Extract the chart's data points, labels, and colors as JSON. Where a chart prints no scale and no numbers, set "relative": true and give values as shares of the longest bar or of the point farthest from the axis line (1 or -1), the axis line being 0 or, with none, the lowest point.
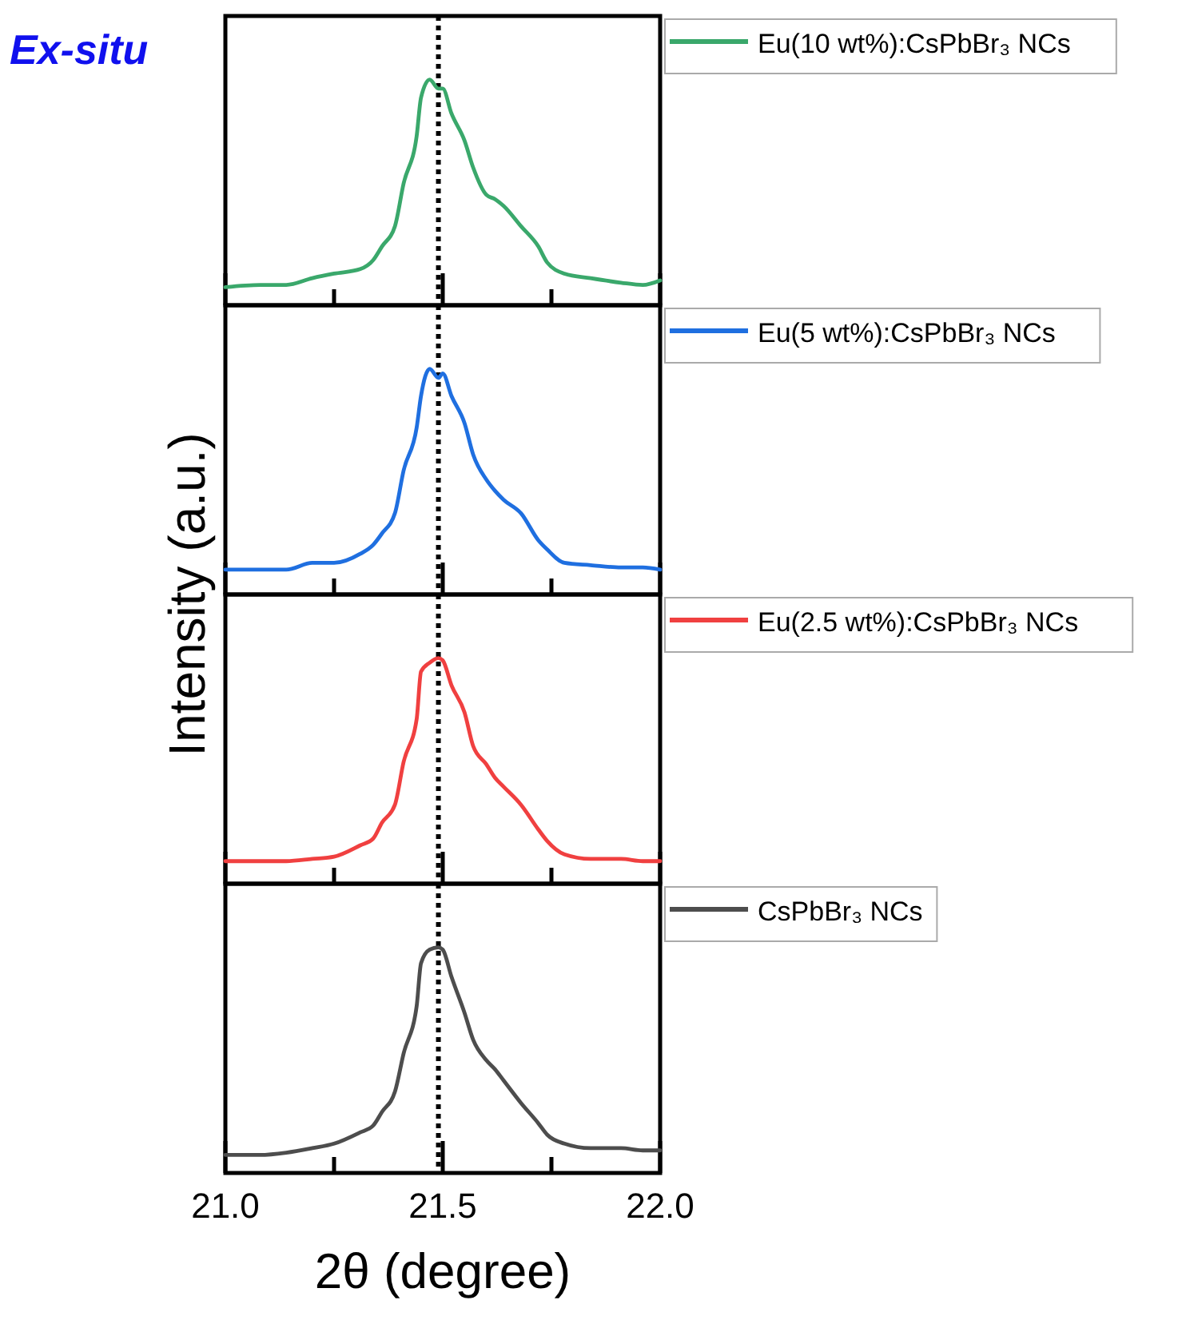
{
  "chart_data": [
    {
      "type": "line",
      "title": "Ex-situ",
      "ylabel": "Intensity (a.u.)",
      "relative": true,
      "legend": "right",
      "tick_labels": false,
      "xlim": [
        21,
        22
      ],
      "xticks": [
        {
          "value": 21,
          "label": null
        },
        {
          "value": 21.25,
          "label": null
        },
        {
          "value": 21.5,
          "label": null
        },
        {
          "value": 21.75,
          "label": null
        },
        {
          "value": 22,
          "label": null
        }
      ],
      "ref_lines": [
        {
          "axis": "x",
          "value": 21.49,
          "label": null,
          "color": "#000000",
          "line_style": "dotted"
        }
      ],
      "x": [
        21.0,
        21.08,
        21.14,
        21.2,
        21.25,
        21.31,
        21.34,
        21.36,
        21.39,
        21.41,
        21.44,
        21.45,
        21.47,
        21.49,
        21.5,
        21.52,
        21.55,
        21.57,
        21.6,
        21.62,
        21.64,
        21.68,
        21.72,
        21.74,
        21.78,
        21.84,
        21.91,
        21.96,
        22.0
      ],
      "series": [
        {
          "name": "Eu(10 wt%):CsPbBr₃ NCs",
          "color": "#3aa86b",
          "values": [
            0.08,
            0.09,
            0.09,
            0.12,
            0.14,
            0.16,
            0.2,
            0.26,
            0.35,
            0.54,
            0.75,
            0.92,
            1.0,
            0.96,
            0.96,
            0.85,
            0.73,
            0.61,
            0.49,
            0.47,
            0.44,
            0.35,
            0.26,
            0.19,
            0.14,
            0.12,
            0.1,
            0.09,
            0.11
          ]
        }
      ]
    },
    {
      "type": "line",
      "relative": true,
      "legend": "right",
      "tick_labels": false,
      "xlim": [
        21,
        22
      ],
      "xticks": [
        {
          "value": 21,
          "label": null
        },
        {
          "value": 21.25,
          "label": null
        },
        {
          "value": 21.5,
          "label": null
        },
        {
          "value": 21.75,
          "label": null
        },
        {
          "value": 22,
          "label": null
        }
      ],
      "ref_lines": [
        {
          "axis": "x",
          "value": 21.49,
          "label": null,
          "color": "#000000",
          "line_style": "dotted"
        }
      ],
      "x": [
        21.0,
        21.08,
        21.14,
        21.2,
        21.25,
        21.31,
        21.34,
        21.36,
        21.39,
        21.41,
        21.44,
        21.45,
        21.47,
        21.49,
        21.5,
        21.52,
        21.55,
        21.57,
        21.6,
        21.62,
        21.64,
        21.68,
        21.72,
        21.74,
        21.78,
        21.84,
        21.91,
        21.96,
        22.0
      ],
      "series": [
        {
          "name": "Eu(5 wt%):CsPbBr₃ NCs",
          "color": "#1f6fe0",
          "values": [
            0.11,
            0.11,
            0.11,
            0.14,
            0.14,
            0.18,
            0.22,
            0.27,
            0.36,
            0.55,
            0.74,
            0.88,
            1.0,
            0.96,
            0.98,
            0.88,
            0.76,
            0.62,
            0.51,
            0.46,
            0.42,
            0.36,
            0.24,
            0.2,
            0.14,
            0.13,
            0.12,
            0.12,
            0.11
          ]
        }
      ]
    },
    {
      "type": "line",
      "relative": true,
      "legend": "right",
      "tick_labels": false,
      "xlim": [
        21,
        22
      ],
      "xticks": [
        {
          "value": 21,
          "label": null
        },
        {
          "value": 21.25,
          "label": null
        },
        {
          "value": 21.5,
          "label": null
        },
        {
          "value": 21.75,
          "label": null
        },
        {
          "value": 22,
          "label": null
        }
      ],
      "ref_lines": [
        {
          "axis": "x",
          "value": 21.49,
          "label": null,
          "color": "#000000",
          "line_style": "dotted"
        }
      ],
      "x": [
        21.0,
        21.08,
        21.14,
        21.2,
        21.25,
        21.31,
        21.34,
        21.36,
        21.39,
        21.41,
        21.44,
        21.45,
        21.47,
        21.49,
        21.5,
        21.52,
        21.55,
        21.57,
        21.6,
        21.62,
        21.64,
        21.68,
        21.72,
        21.74,
        21.78,
        21.84,
        21.91,
        21.96,
        22.0
      ],
      "series": [
        {
          "name": "Eu(2.5 wt%):CsPbBr₃ NCs",
          "color": "#f04040",
          "values": [
            0.1,
            0.1,
            0.1,
            0.11,
            0.12,
            0.17,
            0.2,
            0.27,
            0.35,
            0.54,
            0.73,
            0.94,
            0.98,
            1.0,
            0.99,
            0.88,
            0.76,
            0.61,
            0.53,
            0.47,
            0.43,
            0.35,
            0.24,
            0.19,
            0.13,
            0.11,
            0.11,
            0.1,
            0.1
          ]
        }
      ]
    },
    {
      "type": "line",
      "xlabel": "2θ (degree)",
      "relative": true,
      "legend": "right",
      "tick_labels": "x",
      "xlim": [
        21,
        22
      ],
      "xticks": [
        {
          "value": 21,
          "label": "21.0"
        },
        {
          "value": 21.25,
          "label": null
        },
        {
          "value": 21.5,
          "label": "21.5"
        },
        {
          "value": 21.75,
          "label": null
        },
        {
          "value": 22,
          "label": "22.0"
        }
      ],
      "ref_lines": [
        {
          "axis": "x",
          "value": 21.49,
          "label": null,
          "color": "#000000",
          "line_style": "dotted"
        }
      ],
      "x": [
        21.0,
        21.08,
        21.14,
        21.2,
        21.25,
        21.31,
        21.34,
        21.36,
        21.39,
        21.41,
        21.44,
        21.45,
        21.47,
        21.49,
        21.5,
        21.52,
        21.55,
        21.57,
        21.6,
        21.62,
        21.64,
        21.68,
        21.72,
        21.74,
        21.78,
        21.84,
        21.91,
        21.96,
        22.0
      ],
      "series": [
        {
          "name": "CsPbBr₃ NCs",
          "color": "#4d4d4d",
          "values": [
            0.08,
            0.08,
            0.09,
            0.11,
            0.13,
            0.18,
            0.21,
            0.27,
            0.36,
            0.53,
            0.74,
            0.93,
            0.99,
            1.0,
            0.99,
            0.87,
            0.71,
            0.59,
            0.5,
            0.46,
            0.41,
            0.31,
            0.22,
            0.17,
            0.13,
            0.11,
            0.11,
            0.1,
            0.1
          ]
        }
      ]
    }
  ]
}
